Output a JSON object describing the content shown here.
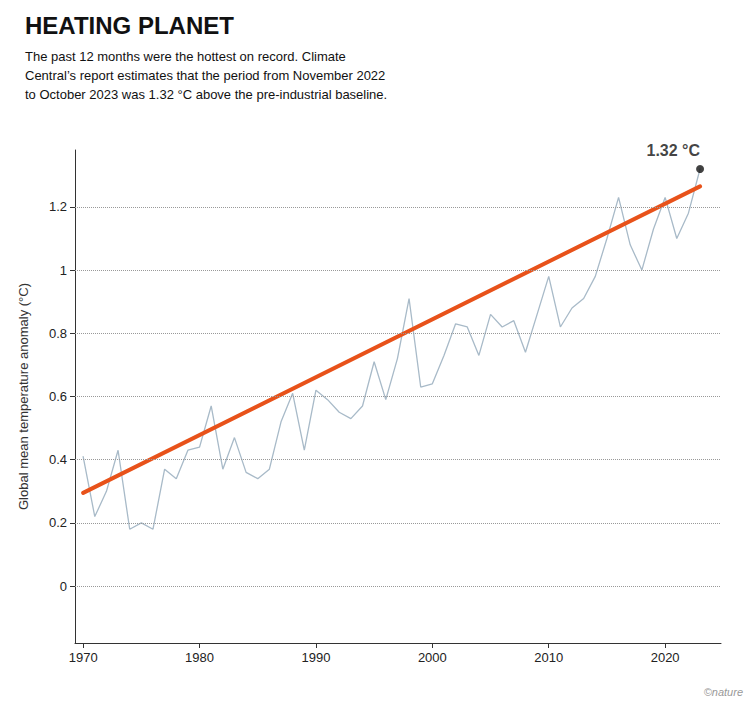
{
  "chart_data": {
    "type": "line",
    "title": "HEATING PLANET",
    "subtitle": "The past 12 months were the hottest on record. Climate\nCentral’s report estimates that the period from November 2022\nto October 2023 was 1.32 °C above the pre-industrial baseline.",
    "ylabel": "Global mean temperature anomaly (°C)",
    "caption": "©nature",
    "xlim": [
      1969.3,
      2024.8
    ],
    "ylim": [
      -0.18,
      1.38
    ],
    "xticks": [
      1970,
      1980,
      1990,
      2000,
      2010,
      2020
    ],
    "yticks": [
      0,
      0.2,
      0.4,
      0.6,
      0.8,
      1,
      1.2
    ],
    "grid": true,
    "series": [
      {
        "type": "line",
        "color": "#A8BAC8",
        "x": [
          1970,
          1971,
          1972,
          1973,
          1974,
          1975,
          1976,
          1977,
          1978,
          1979,
          1980,
          1981,
          1982,
          1983,
          1984,
          1985,
          1986,
          1987,
          1988,
          1989,
          1990,
          1991,
          1992,
          1993,
          1994,
          1995,
          1996,
          1997,
          1998,
          1999,
          2000,
          2001,
          2002,
          2003,
          2004,
          2005,
          2006,
          2007,
          2008,
          2009,
          2010,
          2011,
          2012,
          2013,
          2014,
          2015,
          2016,
          2017,
          2018,
          2019,
          2020,
          2021,
          2022,
          2023
        ],
        "values": [
          0.41,
          0.22,
          0.3,
          0.43,
          0.18,
          0.2,
          0.18,
          0.37,
          0.34,
          0.43,
          0.44,
          0.57,
          0.37,
          0.47,
          0.36,
          0.34,
          0.37,
          0.52,
          0.61,
          0.43,
          0.62,
          0.59,
          0.55,
          0.53,
          0.57,
          0.71,
          0.59,
          0.72,
          0.91,
          0.63,
          0.64,
          0.73,
          0.83,
          0.82,
          0.73,
          0.86,
          0.82,
          0.84,
          0.74,
          0.86,
          0.98,
          0.82,
          0.88,
          0.91,
          0.98,
          1.1,
          1.23,
          1.08,
          1.0,
          1.13,
          1.23,
          1.1,
          1.18,
          1.32
        ]
      },
      {
        "type": "line",
        "color": "#E8521A",
        "x": [
          1970,
          2023
        ],
        "values": [
          0.295,
          1.265
        ]
      },
      {
        "type": "scatter",
        "color": "#111111",
        "x": [
          2023
        ],
        "values": [
          1.32
        ],
        "data_labels": true,
        "value_labels": [
          "1.32 °C"
        ]
      }
    ]
  }
}
